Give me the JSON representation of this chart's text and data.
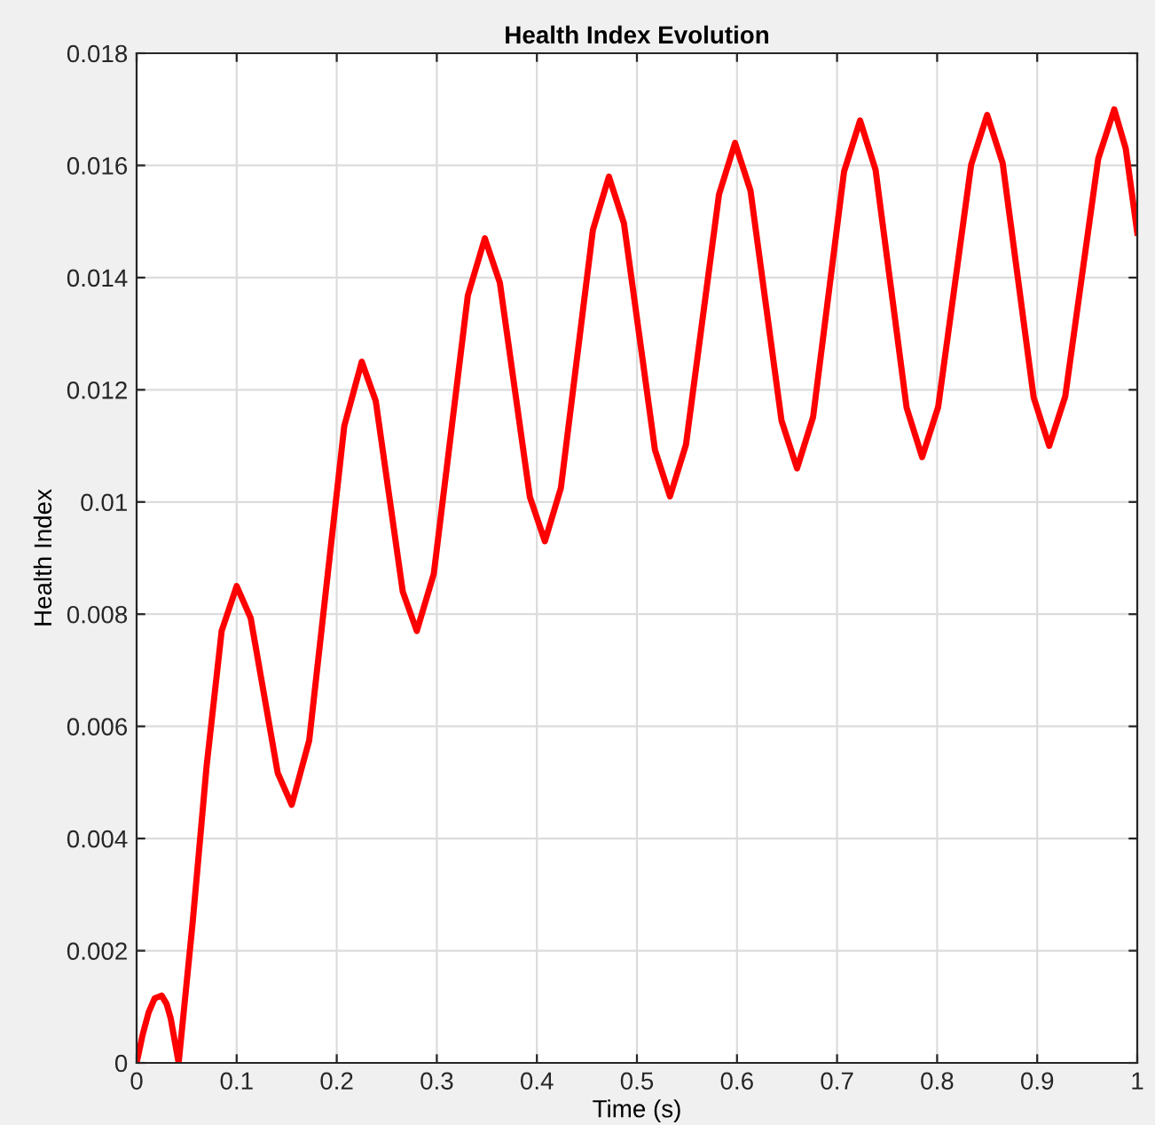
{
  "chart_data": {
    "type": "line",
    "title": "Health Index Evolution",
    "xlabel": "Time (s)",
    "ylabel": "Health Index",
    "series": [
      {
        "color": "#ff0000",
        "x": [
          0,
          0.006,
          0.012,
          0.018,
          0.025,
          0.03,
          0.034,
          0.038,
          0.042,
          0.056,
          0.07,
          0.085,
          0.1,
          0.114,
          0.1275,
          0.141,
          0.155,
          0.1725,
          0.19,
          0.2075,
          0.225,
          0.239,
          0.2525,
          0.266,
          0.28,
          0.297,
          0.314,
          0.331,
          0.348,
          0.363,
          0.378,
          0.393,
          0.408,
          0.424,
          0.44,
          0.456,
          0.472,
          0.487,
          0.5025,
          0.518,
          0.533,
          0.549,
          0.5655,
          0.582,
          0.598,
          0.6135,
          0.629,
          0.6445,
          0.66,
          0.676,
          0.6915,
          0.707,
          0.723,
          0.7385,
          0.754,
          0.7695,
          0.785,
          0.801,
          0.8175,
          0.834,
          0.85,
          0.8655,
          0.881,
          0.8965,
          0.912,
          0.928,
          0.9445,
          0.961,
          0.977,
          0.9885,
          1.0
        ],
        "values": [
          0,
          0.0005,
          0.0009,
          0.00115,
          0.0012,
          0.00105,
          0.0008,
          0.0004,
          0,
          0.0025,
          0.0053,
          0.0077,
          0.0085,
          0.00793,
          0.00655,
          0.00517,
          0.0046,
          0.00575,
          0.00855,
          0.01135,
          0.0125,
          0.0118,
          0.0101,
          0.0084,
          0.0077,
          0.00872,
          0.0112,
          0.01368,
          0.0147,
          0.01391,
          0.012,
          0.01009,
          0.0093,
          0.01025,
          0.01255,
          0.01485,
          0.0158,
          0.01497,
          0.01295,
          0.01093,
          0.0101,
          0.01102,
          0.01325,
          0.01548,
          0.0164,
          0.01555,
          0.0135,
          0.01145,
          0.0106,
          0.01151,
          0.0137,
          0.01589,
          0.0168,
          0.01592,
          0.0138,
          0.01168,
          0.0108,
          0.01169,
          0.01385,
          0.01601,
          0.0169,
          0.01604,
          0.01395,
          0.01186,
          0.011,
          0.01188,
          0.014,
          0.01612,
          0.017,
          0.0163,
          0.0148
        ]
      }
    ],
    "xlim": [
      0,
      1
    ],
    "xticks": [
      0,
      0.1,
      0.2,
      0.3,
      0.4,
      0.5,
      0.6,
      0.7,
      0.8,
      0.9,
      1
    ],
    "ylim": [
      0,
      0.018
    ],
    "yticks": [
      0,
      0.002,
      0.004,
      0.006,
      0.008,
      0.01,
      0.012,
      0.014,
      0.016,
      0.018
    ],
    "grid": true,
    "marker": "none",
    "line_style": "solid",
    "legend": false
  }
}
